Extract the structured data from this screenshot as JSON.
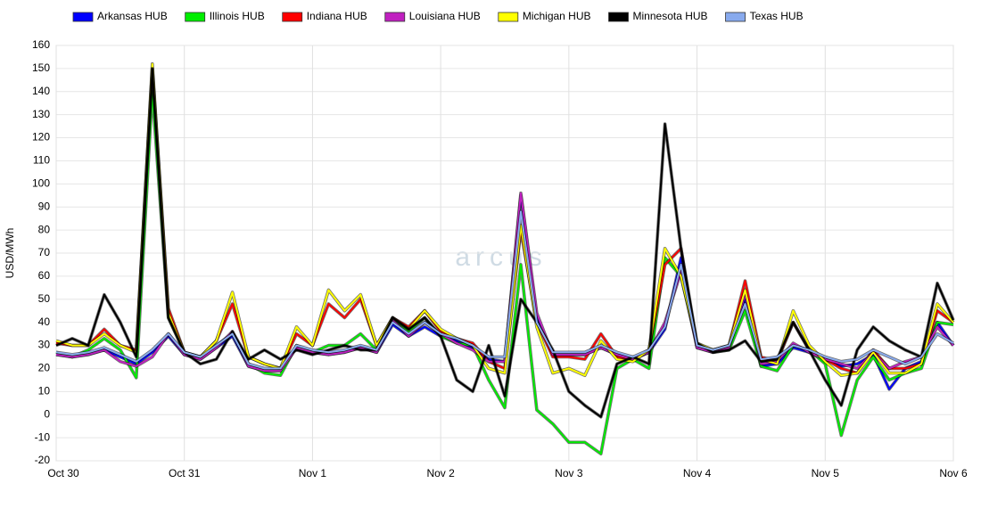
{
  "chart_data": {
    "type": "line",
    "y_label": "USD/MWh",
    "watermark": "arcus",
    "categories": [
      "Oct 30",
      null,
      null,
      null,
      null,
      null,
      null,
      null,
      "Oct 31",
      null,
      null,
      null,
      null,
      null,
      null,
      null,
      "Nov 1",
      null,
      null,
      null,
      null,
      null,
      null,
      null,
      "Nov 2",
      null,
      null,
      null,
      null,
      null,
      null,
      null,
      "Nov 3",
      null,
      null,
      null,
      null,
      null,
      null,
      null,
      "Nov 4",
      null,
      null,
      null,
      null,
      null,
      null,
      null,
      "Nov 5",
      null,
      null,
      null,
      null,
      null,
      null,
      null,
      "Nov 6"
    ],
    "ylim": [
      -20,
      160
    ],
    "yticks": [
      -20,
      -10,
      0,
      10,
      20,
      30,
      40,
      50,
      60,
      70,
      80,
      90,
      100,
      110,
      120,
      130,
      140,
      150,
      160
    ],
    "grid": true,
    "legend": "top",
    "series": [
      {
        "name": "Arkansas HUB",
        "color": "#0000ff",
        "values": [
          26,
          25,
          26,
          28,
          25,
          22,
          27,
          34,
          26,
          24,
          29,
          34,
          21,
          19,
          19,
          29,
          27,
          26,
          27,
          29,
          27,
          39,
          34,
          38,
          34,
          32,
          29,
          24,
          23,
          95,
          42,
          26,
          26,
          26,
          29,
          26,
          24,
          27,
          37,
          68,
          29,
          27,
          29,
          50,
          21,
          22,
          29,
          27,
          24,
          21,
          22,
          26,
          11,
          20,
          23,
          40,
          30
        ]
      },
      {
        "name": "Illinois HUB",
        "color": "#00ee00",
        "values": [
          27,
          25,
          28,
          33,
          28,
          16,
          140,
          42,
          27,
          25,
          30,
          35,
          22,
          18,
          17,
          30,
          27,
          30,
          30,
          35,
          28,
          42,
          36,
          42,
          34,
          31,
          30,
          15,
          3,
          65,
          2,
          -4,
          -12,
          -12,
          -17,
          20,
          24,
          20,
          68,
          60,
          30,
          27,
          28,
          45,
          21,
          19,
          30,
          28,
          22,
          -9,
          15,
          25,
          15,
          18,
          20,
          40,
          39
        ]
      },
      {
        "name": "Indiana HUB",
        "color": "#ff0000",
        "values": [
          31,
          30,
          30,
          37,
          30,
          28,
          150,
          46,
          27,
          25,
          32,
          48,
          25,
          22,
          20,
          35,
          30,
          48,
          42,
          50,
          30,
          42,
          38,
          45,
          36,
          33,
          31,
          23,
          20,
          80,
          40,
          25,
          25,
          24,
          35,
          25,
          24,
          28,
          65,
          72,
          30,
          28,
          30,
          58,
          25,
          23,
          40,
          28,
          24,
          20,
          18,
          28,
          20,
          20,
          22,
          45,
          40
        ]
      },
      {
        "name": "Louisiana HUB",
        "color": "#c020c0",
        "values": [
          26,
          25,
          26,
          28,
          23,
          21,
          25,
          35,
          26,
          24,
          29,
          36,
          21,
          19,
          19,
          29,
          27,
          26,
          27,
          29,
          27,
          41,
          34,
          40,
          35,
          31,
          28,
          23,
          23,
          96,
          44,
          26,
          26,
          26,
          29,
          26,
          24,
          27,
          40,
          62,
          29,
          27,
          29,
          52,
          22,
          23,
          31,
          27,
          24,
          22,
          20,
          27,
          20,
          23,
          25,
          38,
          30
        ]
      },
      {
        "name": "Michigan HUB",
        "color": "#ffff00",
        "values": [
          32,
          30,
          30,
          35,
          30,
          27,
          152,
          44,
          27,
          25,
          32,
          53,
          25,
          22,
          20,
          38,
          30,
          54,
          45,
          52,
          30,
          42,
          37,
          45,
          37,
          33,
          30,
          20,
          18,
          82,
          38,
          18,
          20,
          17,
          32,
          24,
          23,
          28,
          72,
          60,
          31,
          28,
          30,
          54,
          24,
          22,
          45,
          30,
          23,
          17,
          18,
          27,
          18,
          18,
          22,
          48,
          40
        ]
      },
      {
        "name": "Minnesota HUB",
        "color": "#000000",
        "values": [
          30,
          33,
          30,
          52,
          40,
          25,
          150,
          42,
          27,
          22,
          24,
          36,
          24,
          28,
          24,
          28,
          26,
          28,
          30,
          28,
          28,
          42,
          37,
          42,
          34,
          15,
          10,
          30,
          8,
          50,
          40,
          28,
          10,
          4,
          -1,
          22,
          25,
          22,
          126,
          72,
          31,
          27,
          28,
          32,
          23,
          24,
          40,
          28,
          15,
          4,
          28,
          38,
          32,
          28,
          25,
          57,
          41
        ]
      },
      {
        "name": "Texas HUB",
        "color": "#88aaee",
        "values": [
          27,
          26,
          27,
          29,
          26,
          23,
          28,
          35,
          27,
          25,
          30,
          35,
          22,
          20,
          20,
          30,
          28,
          27,
          28,
          30,
          28,
          40,
          35,
          40,
          35,
          33,
          30,
          25,
          25,
          88,
          40,
          27,
          27,
          27,
          30,
          27,
          25,
          28,
          38,
          65,
          30,
          28,
          30,
          48,
          24,
          25,
          30,
          28,
          25,
          23,
          24,
          28,
          25,
          22,
          25,
          35,
          31
        ]
      }
    ]
  }
}
